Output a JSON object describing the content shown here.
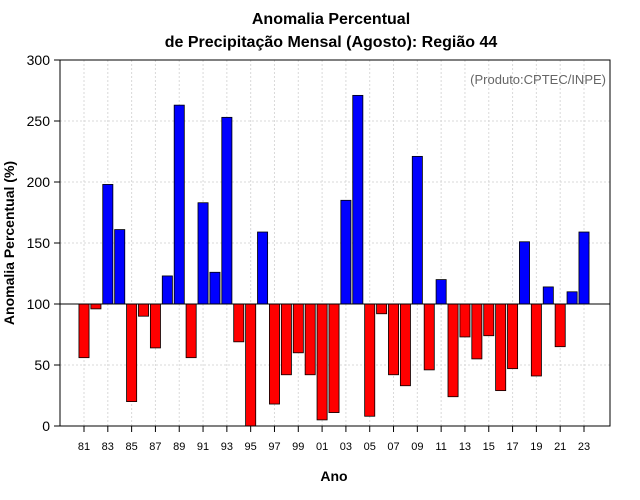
{
  "chart_data": {
    "type": "bar",
    "title_line1": "Anomalia Percentual",
    "title_line2": "de Precipitação Mensal (Agosto): Região 44",
    "xlabel": "Ano",
    "ylabel": "Anomalia Percentual (%)",
    "credit": "(Produto:CPTEC/INPE)",
    "baseline": 100,
    "ylim": [
      0,
      300
    ],
    "yticks": [
      0,
      50,
      100,
      150,
      200,
      250,
      300
    ],
    "ytick_labels": [
      "0",
      "50",
      "100",
      "150",
      "200",
      "250",
      "300"
    ],
    "xtick_labels": [
      "81",
      "83",
      "85",
      "87",
      "89",
      "91",
      "93",
      "95",
      "97",
      "99",
      "01",
      "03",
      "05",
      "07",
      "09",
      "11",
      "13",
      "15",
      "17",
      "19",
      "21",
      "23"
    ],
    "categories": [
      "1981",
      "1982",
      "1983",
      "1984",
      "1985",
      "1986",
      "1987",
      "1988",
      "1989",
      "1990",
      "1991",
      "1992",
      "1993",
      "1994",
      "1995",
      "1996",
      "1997",
      "1998",
      "1999",
      "2000",
      "2001",
      "2002",
      "2003",
      "2004",
      "2005",
      "2006",
      "2007",
      "2008",
      "2009",
      "2010",
      "2011",
      "2012",
      "2013",
      "2014",
      "2015",
      "2016",
      "2017",
      "2018",
      "2019",
      "2020",
      "2021",
      "2022",
      "2023"
    ],
    "values": [
      56,
      96,
      198,
      161,
      20,
      90,
      64,
      123,
      263,
      56,
      183,
      126,
      253,
      69,
      0,
      159,
      18,
      42,
      60,
      42,
      5,
      11,
      185,
      271,
      8,
      92,
      42,
      33,
      221,
      46,
      120,
      24,
      73,
      55,
      74,
      29,
      47,
      151,
      41,
      114,
      65,
      110,
      159
    ],
    "colors": {
      "above": "#0000ff",
      "below": "#ff0000",
      "grid": "#d9d9d9",
      "frame": "#000000"
    }
  }
}
